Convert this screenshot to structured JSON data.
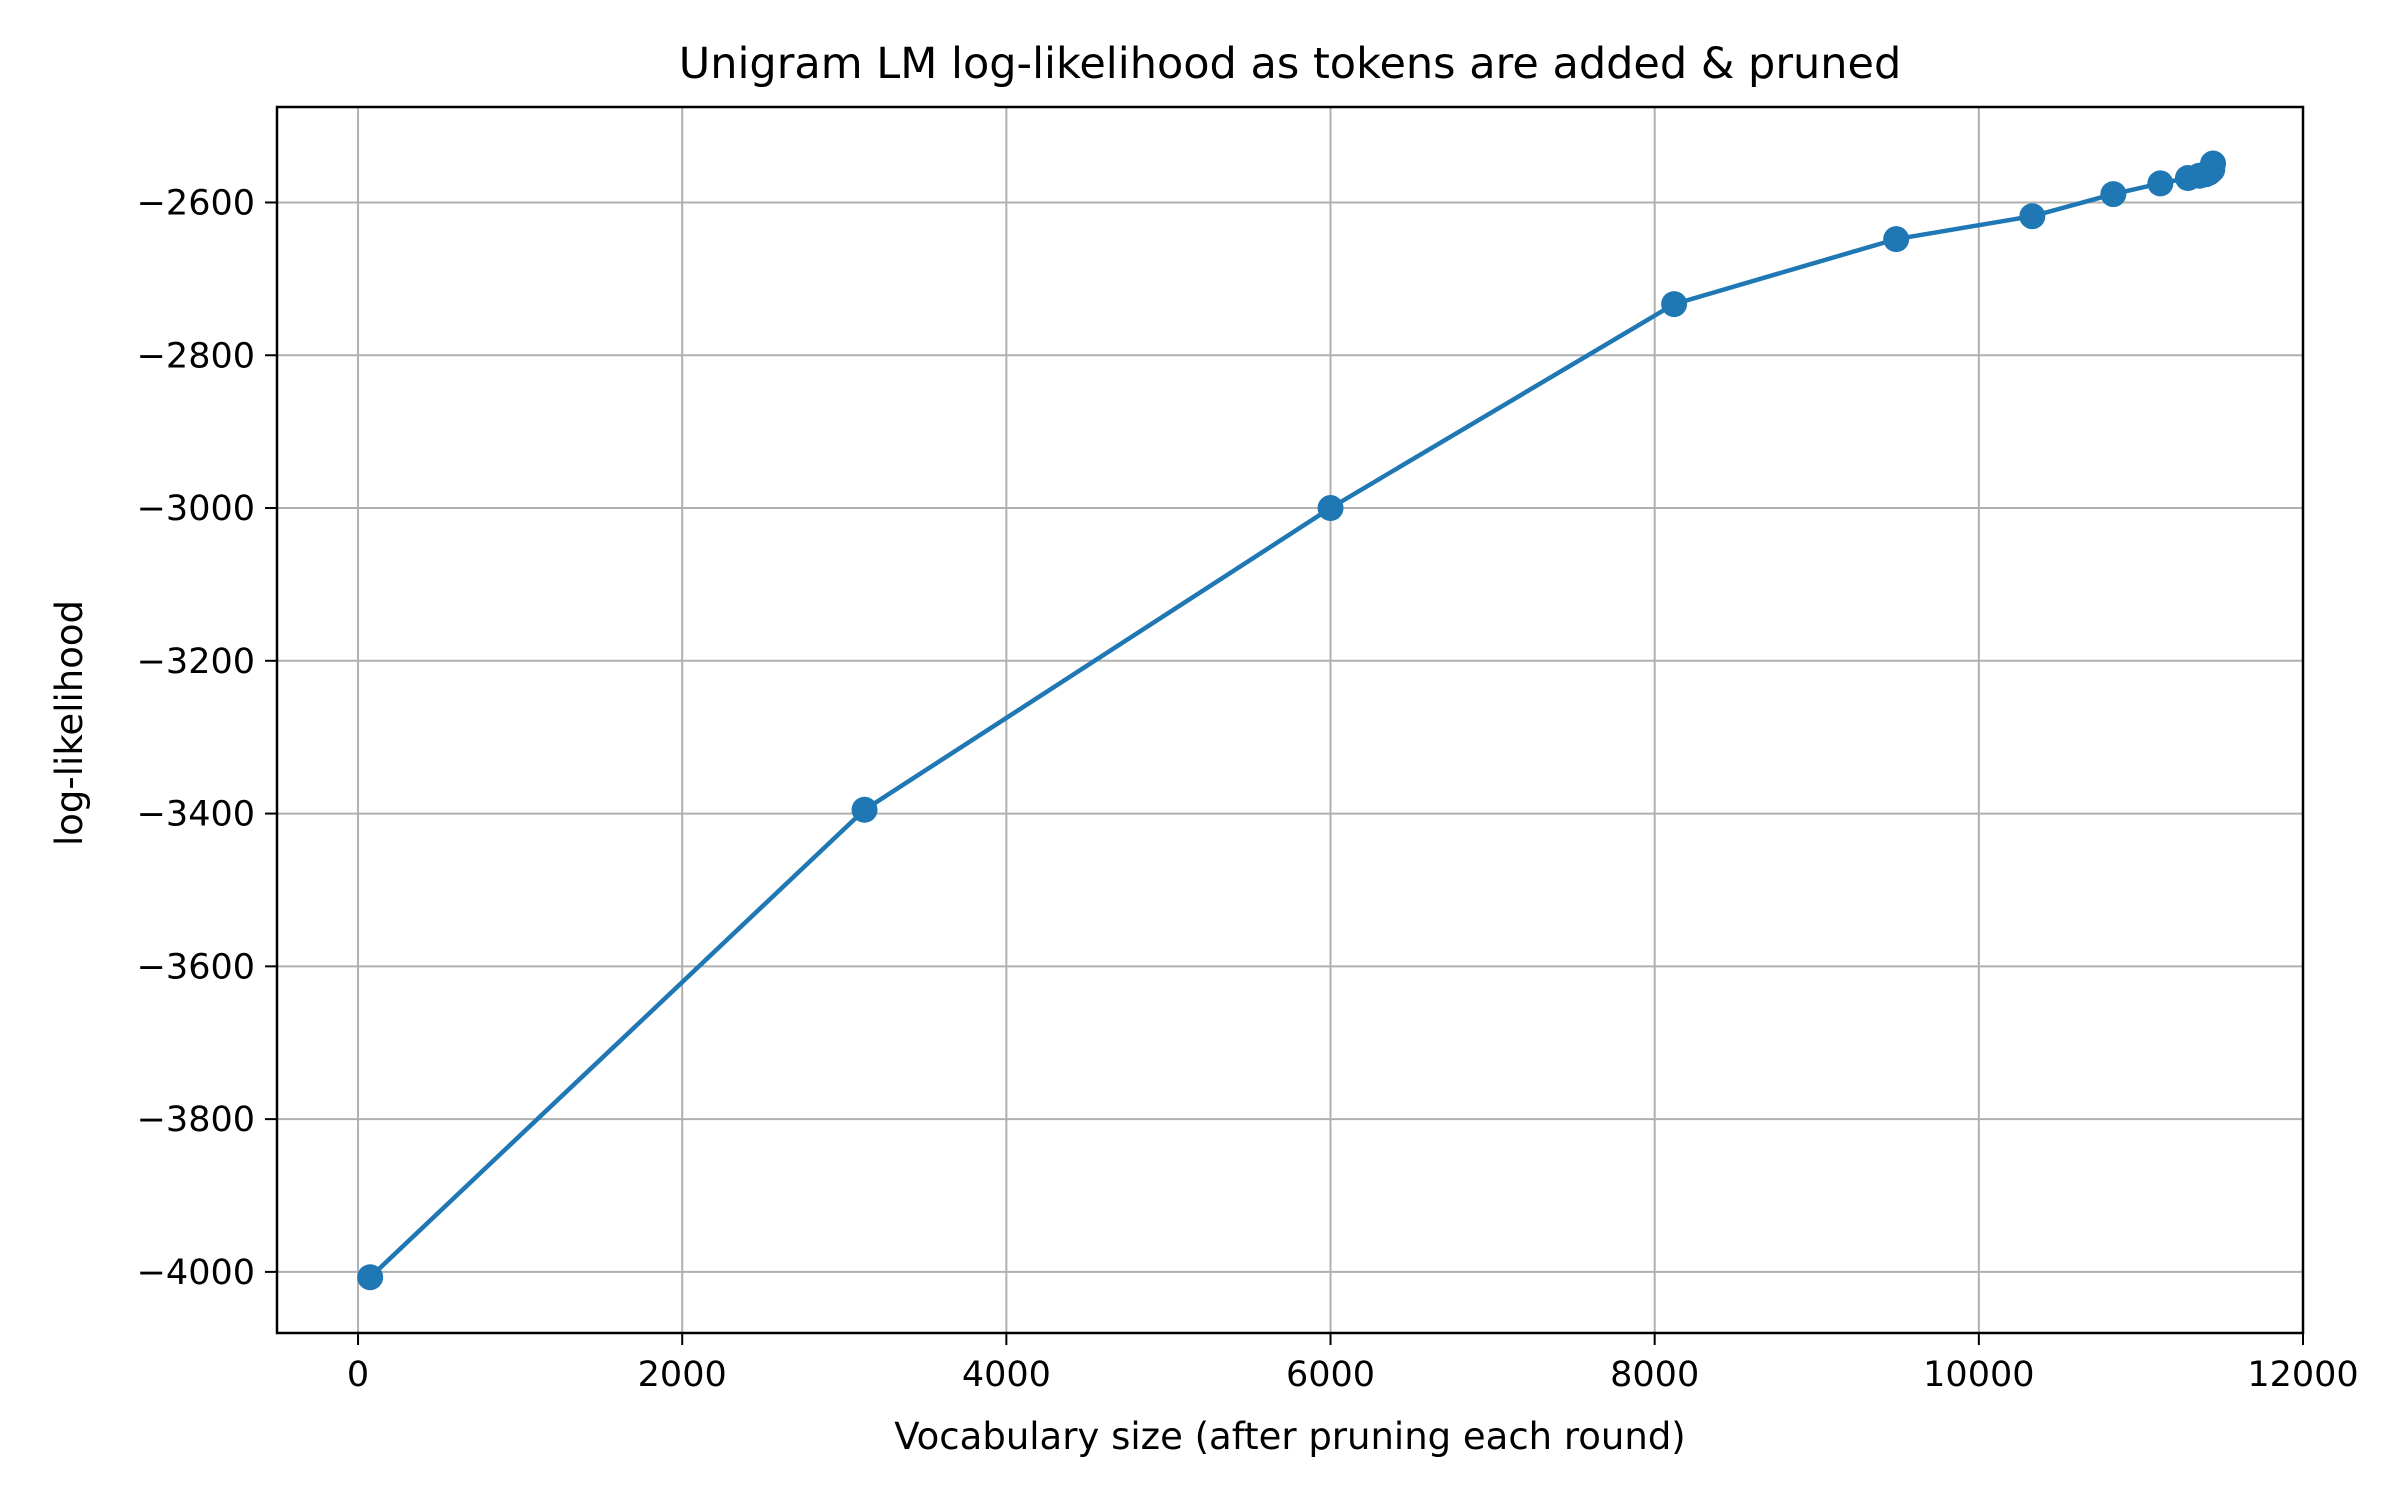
{
  "chart_data": {
    "type": "line",
    "title": "Unigram LM log-likelihood as tokens are added & pruned",
    "xlabel": "Vocabulary size (after pruning each round)",
    "ylabel": "log-likelihood",
    "xlim": [
      -500,
      12000
    ],
    "ylim": [
      -4080,
      -2475
    ],
    "xticks": [
      0,
      2000,
      4000,
      6000,
      8000,
      10000,
      12000
    ],
    "xtick_labels": [
      "0",
      "2000",
      "4000",
      "6000",
      "8000",
      "10000",
      "12000"
    ],
    "yticks": [
      -4000,
      -3800,
      -3600,
      -3400,
      -3200,
      -3000,
      -2800,
      -2600
    ],
    "ytick_labels": [
      "−4000",
      "−3800",
      "−3600",
      "−3400",
      "−3200",
      "−3000",
      "−2800",
      "−2600"
    ],
    "grid": true,
    "legend": "none",
    "colors": {
      "line": "#1f77b4",
      "grid": "#b0b0b0",
      "axes": "#000000"
    },
    "series": [
      {
        "x": [
          75,
          3125,
          6000,
          8120,
          9490,
          10330,
          10830,
          11120,
          11290,
          11360,
          11400,
          11420,
          11430,
          11440,
          11445
        ],
        "y": [
          -4007,
          -3395,
          -3000,
          -2733,
          -2648,
          -2618,
          -2589,
          -2575,
          -2568,
          -2565,
          -2563,
          -2561,
          -2559,
          -2557,
          -2549
        ]
      }
    ]
  }
}
